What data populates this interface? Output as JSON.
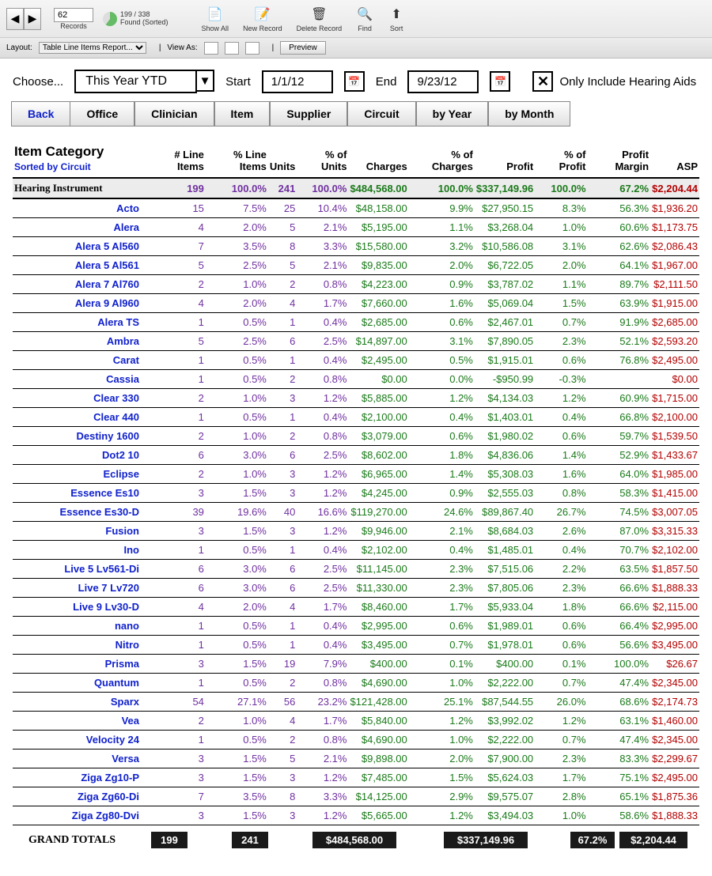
{
  "toolbar": {
    "record_input": "62",
    "records_label": "Records",
    "found_count": "199 / 338",
    "found_label": "Found (Sorted)",
    "show_all": "Show All",
    "new_record": "New Record",
    "delete_record": "Delete Record",
    "find": "Find",
    "sort": "Sort"
  },
  "layoutbar": {
    "layout_label": "Layout:",
    "layout_value": "Table Line Items Report...",
    "viewas_label": "View As:",
    "preview": "Preview"
  },
  "filter": {
    "choose_label": "Choose...",
    "period": "This Year YTD",
    "start_label": "Start",
    "start_date": "1/1/12",
    "end_label": "End",
    "end_date": "9/23/12",
    "only_hearing": "Only Include Hearing Aids"
  },
  "tabs": {
    "back": "Back",
    "office": "Office",
    "clinician": "Clinician",
    "item": "Item",
    "supplier": "Supplier",
    "circuit": "Circuit",
    "byyear": "by Year",
    "bymonth": "by Month"
  },
  "table": {
    "title": "Item Category",
    "subtitle": "Sorted by Circuit",
    "columns": [
      "# Line Items",
      "% Line Items",
      "Units",
      "% of Units",
      "Charges",
      "% of Charges",
      "Profit",
      "% of Profit",
      "Profit Margin",
      "ASP"
    ],
    "header_row": {
      "name": "Hearing Instrument",
      "li": "199",
      "pli": "100.0%",
      "u": "241",
      "pu": "100.0%",
      "ch": "$484,568.00",
      "pch": "100.0%",
      "pr": "$337,149.96",
      "ppr": "100.0%",
      "pm": "67.2%",
      "asp": "$2,204.44"
    },
    "rows": [
      {
        "name": "Acto",
        "li": "15",
        "pli": "7.5%",
        "u": "25",
        "pu": "10.4%",
        "ch": "$48,158.00",
        "pch": "9.9%",
        "pr": "$27,950.15",
        "ppr": "8.3%",
        "pm": "56.3%",
        "asp": "$1,936.20"
      },
      {
        "name": "Alera",
        "li": "4",
        "pli": "2.0%",
        "u": "5",
        "pu": "2.1%",
        "ch": "$5,195.00",
        "pch": "1.1%",
        "pr": "$3,268.04",
        "ppr": "1.0%",
        "pm": "60.6%",
        "asp": "$1,173.75"
      },
      {
        "name": "Alera 5 Al560",
        "li": "7",
        "pli": "3.5%",
        "u": "8",
        "pu": "3.3%",
        "ch": "$15,580.00",
        "pch": "3.2%",
        "pr": "$10,586.08",
        "ppr": "3.1%",
        "pm": "62.6%",
        "asp": "$2,086.43"
      },
      {
        "name": "Alera 5 Al561",
        "li": "5",
        "pli": "2.5%",
        "u": "5",
        "pu": "2.1%",
        "ch": "$9,835.00",
        "pch": "2.0%",
        "pr": "$6,722.05",
        "ppr": "2.0%",
        "pm": "64.1%",
        "asp": "$1,967.00"
      },
      {
        "name": "Alera 7 Al760",
        "li": "2",
        "pli": "1.0%",
        "u": "2",
        "pu": "0.8%",
        "ch": "$4,223.00",
        "pch": "0.9%",
        "pr": "$3,787.02",
        "ppr": "1.1%",
        "pm": "89.7%",
        "asp": "$2,111.50"
      },
      {
        "name": "Alera 9 Al960",
        "li": "4",
        "pli": "2.0%",
        "u": "4",
        "pu": "1.7%",
        "ch": "$7,660.00",
        "pch": "1.6%",
        "pr": "$5,069.04",
        "ppr": "1.5%",
        "pm": "63.9%",
        "asp": "$1,915.00"
      },
      {
        "name": "Alera TS",
        "li": "1",
        "pli": "0.5%",
        "u": "1",
        "pu": "0.4%",
        "ch": "$2,685.00",
        "pch": "0.6%",
        "pr": "$2,467.01",
        "ppr": "0.7%",
        "pm": "91.9%",
        "asp": "$2,685.00"
      },
      {
        "name": "Ambra",
        "li": "5",
        "pli": "2.5%",
        "u": "6",
        "pu": "2.5%",
        "ch": "$14,897.00",
        "pch": "3.1%",
        "pr": "$7,890.05",
        "ppr": "2.3%",
        "pm": "52.1%",
        "asp": "$2,593.20"
      },
      {
        "name": "Carat",
        "li": "1",
        "pli": "0.5%",
        "u": "1",
        "pu": "0.4%",
        "ch": "$2,495.00",
        "pch": "0.5%",
        "pr": "$1,915.01",
        "ppr": "0.6%",
        "pm": "76.8%",
        "asp": "$2,495.00"
      },
      {
        "name": "Cassia",
        "li": "1",
        "pli": "0.5%",
        "u": "2",
        "pu": "0.8%",
        "ch": "$0.00",
        "pch": "0.0%",
        "pr": "-$950.99",
        "ppr": "-0.3%",
        "pm": "",
        "asp": "$0.00"
      },
      {
        "name": "Clear 330",
        "li": "2",
        "pli": "1.0%",
        "u": "3",
        "pu": "1.2%",
        "ch": "$5,885.00",
        "pch": "1.2%",
        "pr": "$4,134.03",
        "ppr": "1.2%",
        "pm": "60.9%",
        "asp": "$1,715.00"
      },
      {
        "name": "Clear 440",
        "li": "1",
        "pli": "0.5%",
        "u": "1",
        "pu": "0.4%",
        "ch": "$2,100.00",
        "pch": "0.4%",
        "pr": "$1,403.01",
        "ppr": "0.4%",
        "pm": "66.8%",
        "asp": "$2,100.00"
      },
      {
        "name": "Destiny 1600",
        "li": "2",
        "pli": "1.0%",
        "u": "2",
        "pu": "0.8%",
        "ch": "$3,079.00",
        "pch": "0.6%",
        "pr": "$1,980.02",
        "ppr": "0.6%",
        "pm": "59.7%",
        "asp": "$1,539.50"
      },
      {
        "name": "Dot2 10",
        "li": "6",
        "pli": "3.0%",
        "u": "6",
        "pu": "2.5%",
        "ch": "$8,602.00",
        "pch": "1.8%",
        "pr": "$4,836.06",
        "ppr": "1.4%",
        "pm": "52.9%",
        "asp": "$1,433.67"
      },
      {
        "name": "Eclipse",
        "li": "2",
        "pli": "1.0%",
        "u": "3",
        "pu": "1.2%",
        "ch": "$6,965.00",
        "pch": "1.4%",
        "pr": "$5,308.03",
        "ppr": "1.6%",
        "pm": "64.0%",
        "asp": "$1,985.00"
      },
      {
        "name": "Essence Es10",
        "li": "3",
        "pli": "1.5%",
        "u": "3",
        "pu": "1.2%",
        "ch": "$4,245.00",
        "pch": "0.9%",
        "pr": "$2,555.03",
        "ppr": "0.8%",
        "pm": "58.3%",
        "asp": "$1,415.00"
      },
      {
        "name": "Essence Es30-D",
        "li": "39",
        "pli": "19.6%",
        "u": "40",
        "pu": "16.6%",
        "ch": "$119,270.00",
        "pch": "24.6%",
        "pr": "$89,867.40",
        "ppr": "26.7%",
        "pm": "74.5%",
        "asp": "$3,007.05"
      },
      {
        "name": "Fusion",
        "li": "3",
        "pli": "1.5%",
        "u": "3",
        "pu": "1.2%",
        "ch": "$9,946.00",
        "pch": "2.1%",
        "pr": "$8,684.03",
        "ppr": "2.6%",
        "pm": "87.0%",
        "asp": "$3,315.33"
      },
      {
        "name": "Ino",
        "li": "1",
        "pli": "0.5%",
        "u": "1",
        "pu": "0.4%",
        "ch": "$2,102.00",
        "pch": "0.4%",
        "pr": "$1,485.01",
        "ppr": "0.4%",
        "pm": "70.7%",
        "asp": "$2,102.00"
      },
      {
        "name": "Live 5 Lv561-Di",
        "li": "6",
        "pli": "3.0%",
        "u": "6",
        "pu": "2.5%",
        "ch": "$11,145.00",
        "pch": "2.3%",
        "pr": "$7,515.06",
        "ppr": "2.2%",
        "pm": "63.5%",
        "asp": "$1,857.50"
      },
      {
        "name": "Live 7 Lv720",
        "li": "6",
        "pli": "3.0%",
        "u": "6",
        "pu": "2.5%",
        "ch": "$11,330.00",
        "pch": "2.3%",
        "pr": "$7,805.06",
        "ppr": "2.3%",
        "pm": "66.6%",
        "asp": "$1,888.33"
      },
      {
        "name": "Live 9 Lv30-D",
        "li": "4",
        "pli": "2.0%",
        "u": "4",
        "pu": "1.7%",
        "ch": "$8,460.00",
        "pch": "1.7%",
        "pr": "$5,933.04",
        "ppr": "1.8%",
        "pm": "66.6%",
        "asp": "$2,115.00"
      },
      {
        "name": "nano",
        "li": "1",
        "pli": "0.5%",
        "u": "1",
        "pu": "0.4%",
        "ch": "$2,995.00",
        "pch": "0.6%",
        "pr": "$1,989.01",
        "ppr": "0.6%",
        "pm": "66.4%",
        "asp": "$2,995.00"
      },
      {
        "name": "Nitro",
        "li": "1",
        "pli": "0.5%",
        "u": "1",
        "pu": "0.4%",
        "ch": "$3,495.00",
        "pch": "0.7%",
        "pr": "$1,978.01",
        "ppr": "0.6%",
        "pm": "56.6%",
        "asp": "$3,495.00"
      },
      {
        "name": "Prisma",
        "li": "3",
        "pli": "1.5%",
        "u": "19",
        "pu": "7.9%",
        "ch": "$400.00",
        "pch": "0.1%",
        "pr": "$400.00",
        "ppr": "0.1%",
        "pm": "100.0%",
        "asp": "$26.67"
      },
      {
        "name": "Quantum",
        "li": "1",
        "pli": "0.5%",
        "u": "2",
        "pu": "0.8%",
        "ch": "$4,690.00",
        "pch": "1.0%",
        "pr": "$2,222.00",
        "ppr": "0.7%",
        "pm": "47.4%",
        "asp": "$2,345.00"
      },
      {
        "name": "Sparx",
        "li": "54",
        "pli": "27.1%",
        "u": "56",
        "pu": "23.2%",
        "ch": "$121,428.00",
        "pch": "25.1%",
        "pr": "$87,544.55",
        "ppr": "26.0%",
        "pm": "68.6%",
        "asp": "$2,174.73"
      },
      {
        "name": "Vea",
        "li": "2",
        "pli": "1.0%",
        "u": "4",
        "pu": "1.7%",
        "ch": "$5,840.00",
        "pch": "1.2%",
        "pr": "$3,992.02",
        "ppr": "1.2%",
        "pm": "63.1%",
        "asp": "$1,460.00"
      },
      {
        "name": "Velocity 24",
        "li": "1",
        "pli": "0.5%",
        "u": "2",
        "pu": "0.8%",
        "ch": "$4,690.00",
        "pch": "1.0%",
        "pr": "$2,222.00",
        "ppr": "0.7%",
        "pm": "47.4%",
        "asp": "$2,345.00"
      },
      {
        "name": "Versa",
        "li": "3",
        "pli": "1.5%",
        "u": "5",
        "pu": "2.1%",
        "ch": "$9,898.00",
        "pch": "2.0%",
        "pr": "$7,900.00",
        "ppr": "2.3%",
        "pm": "83.3%",
        "asp": "$2,299.67"
      },
      {
        "name": "Ziga Zg10-P",
        "li": "3",
        "pli": "1.5%",
        "u": "3",
        "pu": "1.2%",
        "ch": "$7,485.00",
        "pch": "1.5%",
        "pr": "$5,624.03",
        "ppr": "1.7%",
        "pm": "75.1%",
        "asp": "$2,495.00"
      },
      {
        "name": "Ziga Zg60-Di",
        "li": "7",
        "pli": "3.5%",
        "u": "8",
        "pu": "3.3%",
        "ch": "$14,125.00",
        "pch": "2.9%",
        "pr": "$9,575.07",
        "ppr": "2.8%",
        "pm": "65.1%",
        "asp": "$1,875.36"
      },
      {
        "name": "Ziga Zg80-Dvi",
        "li": "3",
        "pli": "1.5%",
        "u": "3",
        "pu": "1.2%",
        "ch": "$5,665.00",
        "pch": "1.2%",
        "pr": "$3,494.03",
        "ppr": "1.0%",
        "pm": "58.6%",
        "asp": "$1,888.33"
      }
    ],
    "grand": {
      "label": "GRAND TOTALS",
      "li": "199",
      "u": "241",
      "ch": "$484,568.00",
      "pr": "$337,149.96",
      "pm": "67.2%",
      "asp": "$2,204.44"
    }
  }
}
